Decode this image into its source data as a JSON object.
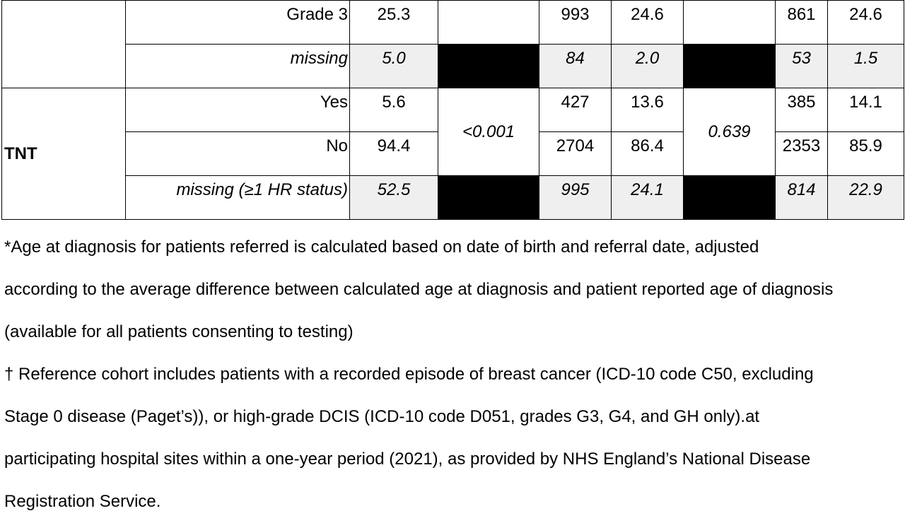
{
  "table": {
    "grade3": {
      "label": "Grade 3",
      "pct": "25.3",
      "n1": "993",
      "p1": "24.6",
      "n2": "861",
      "p2": "24.6"
    },
    "missing_grade": {
      "label": "missing",
      "pct": "5.0",
      "n1": "84",
      "p1": "2.0",
      "n2": "53",
      "p2": "1.5"
    },
    "tnt": {
      "category": "TNT",
      "yes": {
        "label": "Yes",
        "pct": "5.6",
        "n1": "427",
        "p1": "13.6",
        "n2": "385",
        "p2": "14.1"
      },
      "no": {
        "label": "No",
        "pct": "94.4",
        "n1": "2704",
        "p1": "86.4",
        "n2": "2353",
        "p2": "85.9"
      },
      "pvalue1": "<0.001",
      "pvalue2": "0.639",
      "missing": {
        "label": "missing (≥1 HR status)",
        "pct": "52.5",
        "n1": "995",
        "p1": "24.1",
        "n2": "814",
        "p2": "22.9"
      }
    }
  },
  "footnotes": {
    "age": {
      "line1": "*Age at diagnosis for patients referred is calculated based on date of birth and referral date, adjusted",
      "line2": "according to the average difference between calculated age at diagnosis and patient reported age of diagnosis",
      "line3": "(available for all patients consenting to testing)"
    },
    "reference": {
      "line1": "† Reference cohort includes patients with a recorded episode of breast cancer (ICD-10 code C50, excluding",
      "line2": "Stage 0 disease (Paget’s)), or high-grade DCIS (ICD-10 code D051, grades G3, G4, and GH only).at",
      "line3": "participating hospital sites within a one-year period (2021), as provided by NHS England’s National Disease",
      "line4": "Registration Service."
    }
  }
}
